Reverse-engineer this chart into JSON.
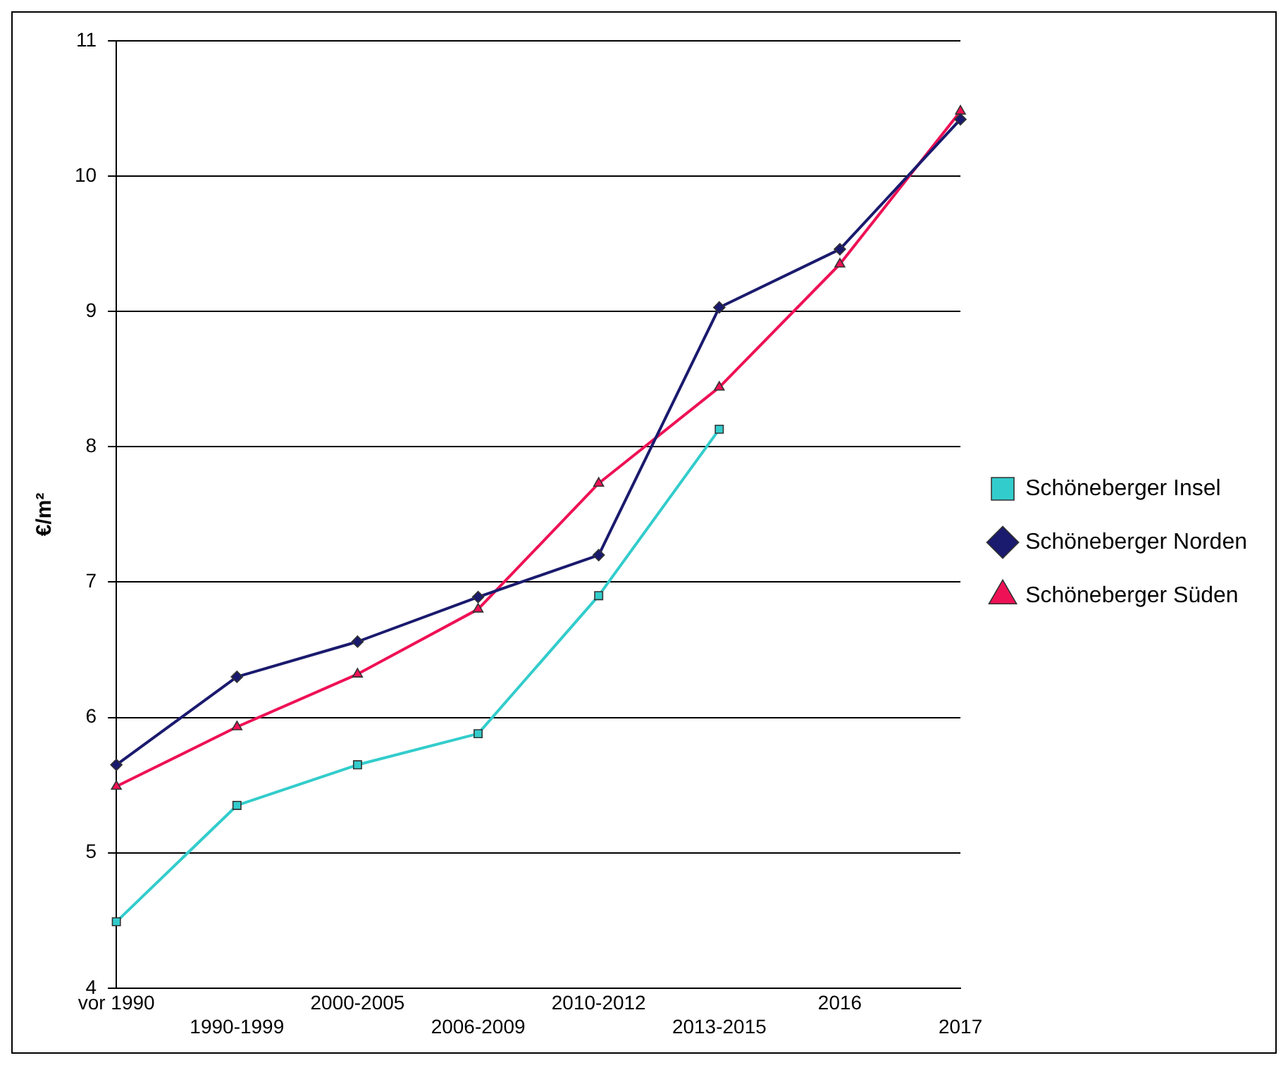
{
  "chart_data": {
    "type": "line",
    "ylabel": "€/m²",
    "categories": [
      "vor 1990",
      "1990-1999",
      "2000-2005",
      "2006-2009",
      "2010-2012",
      "2013-2015",
      "2016",
      "2017"
    ],
    "series": [
      {
        "name": "Schöneberger Insel",
        "color": "#33cccc",
        "marker": "square",
        "values": [
          4.49,
          5.35,
          5.65,
          5.88,
          6.9,
          8.13,
          null,
          null
        ]
      },
      {
        "name": "Schöneberger Norden",
        "color": "#1a1a6e",
        "marker": "diamond",
        "values": [
          5.65,
          6.3,
          6.56,
          6.89,
          7.2,
          9.03,
          9.46,
          10.42
        ]
      },
      {
        "name": "Schöneberger Süden",
        "color": "#ee1155",
        "marker": "triangle",
        "values": [
          5.49,
          5.93,
          6.32,
          6.8,
          7.73,
          8.44,
          9.35,
          10.48
        ]
      }
    ],
    "ylim": [
      4,
      11
    ],
    "yticks": [
      4,
      5,
      6,
      7,
      8,
      9,
      10,
      11
    ],
    "grid": "y",
    "legend": "right"
  }
}
